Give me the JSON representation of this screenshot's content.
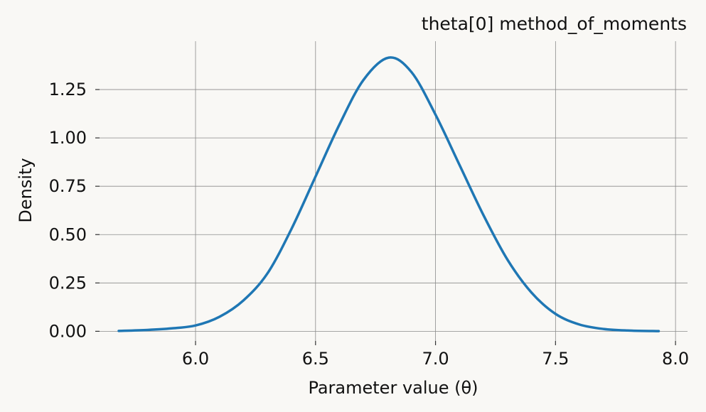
{
  "chart_data": {
    "type": "line",
    "title": "theta[0]  method_of_moments",
    "xlabel": "Parameter value (θ)",
    "ylabel": "Density",
    "xlim": [
      5.6,
      8.05
    ],
    "ylim": [
      -0.05,
      1.5
    ],
    "xticks": [
      6.0,
      6.5,
      7.0,
      7.5,
      8.0
    ],
    "xtick_labels": [
      "6.0",
      "6.5",
      "7.0",
      "7.5",
      "8.0"
    ],
    "yticks": [
      0.0,
      0.25,
      0.5,
      0.75,
      1.0,
      1.25
    ],
    "ytick_labels": [
      "0.00",
      "0.25",
      "0.50",
      "0.75",
      "1.00",
      "1.25"
    ],
    "grid": true,
    "series": [
      {
        "color": "#1f77b4",
        "x": [
          5.68,
          5.8,
          5.9,
          6.0,
          6.1,
          6.2,
          6.3,
          6.4,
          6.5,
          6.6,
          6.7,
          6.805,
          6.9,
          7.0,
          7.1,
          7.2,
          7.3,
          7.4,
          7.5,
          7.6,
          7.7,
          7.8,
          7.93
        ],
        "y": [
          0.002,
          0.007,
          0.015,
          0.03,
          0.075,
          0.16,
          0.3,
          0.53,
          0.8,
          1.07,
          1.3,
          1.415,
          1.34,
          1.12,
          0.86,
          0.6,
          0.37,
          0.2,
          0.09,
          0.035,
          0.012,
          0.004,
          0.001
        ]
      }
    ]
  }
}
